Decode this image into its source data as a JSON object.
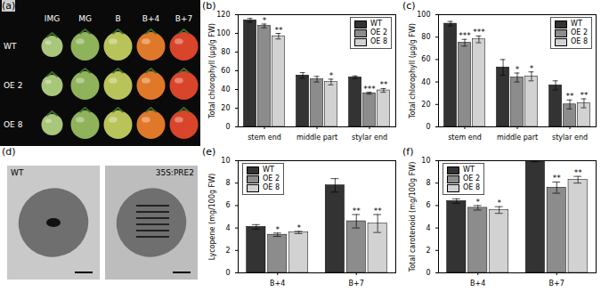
{
  "chart_data": [
    {
      "type": "bar",
      "title": "(b)",
      "ylabel": "Total chlorophyll (μg/g FW)",
      "categories": [
        "stem end",
        "middle part",
        "stylar end"
      ],
      "ylim": [
        0,
        120
      ],
      "yticks": [
        0,
        20,
        40,
        60,
        80,
        100,
        120
      ],
      "legend": "top right",
      "series": [
        {
          "name": "WT",
          "color": "#333333",
          "values": [
            114,
            55,
            53
          ],
          "errors": [
            2,
            3,
            1.5
          ],
          "significance": [
            null,
            null,
            null
          ]
        },
        {
          "name": "OE 2",
          "color": "#8c8c8c",
          "values": [
            108,
            51,
            36
          ],
          "errors": [
            2,
            3,
            1
          ],
          "significance": [
            "*",
            null,
            "***"
          ]
        },
        {
          "name": "OE 8",
          "color": "#d2d2d2",
          "values": [
            97,
            48,
            39
          ],
          "errors": [
            3,
            3,
            2
          ],
          "significance": [
            "**",
            "*",
            "**"
          ]
        }
      ]
    },
    {
      "type": "bar",
      "title": "(c)",
      "ylabel": "Total chlorophyll (μg/g FW)",
      "categories": [
        "stem end",
        "middle part",
        "stylar end"
      ],
      "ylim": [
        0,
        100
      ],
      "yticks": [
        0,
        20,
        40,
        60,
        80,
        100
      ],
      "legend": "top right",
      "series": [
        {
          "name": "WT",
          "color": "#333333",
          "values": [
            92,
            53,
            37
          ],
          "errors": [
            2,
            7,
            4
          ],
          "significance": [
            null,
            null,
            null
          ]
        },
        {
          "name": "OE 2",
          "color": "#8c8c8c",
          "values": [
            75,
            44,
            20
          ],
          "errors": [
            3,
            4,
            4
          ],
          "significance": [
            "***",
            "*",
            "**"
          ]
        },
        {
          "name": "OE 8",
          "color": "#d2d2d2",
          "values": [
            78,
            45,
            21
          ],
          "errors": [
            3,
            4,
            4
          ],
          "significance": [
            "***",
            "*",
            "**"
          ]
        }
      ]
    },
    {
      "type": "bar",
      "title": "(e)",
      "ylabel": "Lycopene (mg/100g FW)",
      "categories": [
        "B+4",
        "B+7"
      ],
      "ylim": [
        0,
        10
      ],
      "yticks": [
        0,
        2,
        4,
        6,
        8,
        10
      ],
      "legend": "top left",
      "series": [
        {
          "name": "WT",
          "color": "#333333",
          "values": [
            4.1,
            7.8
          ],
          "errors": [
            0.2,
            0.6
          ],
          "significance": [
            null,
            null
          ]
        },
        {
          "name": "OE 2",
          "color": "#8c8c8c",
          "values": [
            3.4,
            4.6
          ],
          "errors": [
            0.15,
            0.6
          ],
          "significance": [
            "*",
            "**"
          ]
        },
        {
          "name": "OE 8",
          "color": "#d2d2d2",
          "values": [
            3.6,
            4.4
          ],
          "errors": [
            0.1,
            0.8
          ],
          "significance": [
            "*",
            "**"
          ]
        }
      ]
    },
    {
      "type": "bar",
      "title": "(f)",
      "ylabel": "Total carotenoid (mg/100g FW)",
      "categories": [
        "B+4",
        "B+7"
      ],
      "ylim": [
        0,
        10
      ],
      "yticks": [
        0,
        2,
        4,
        6,
        8,
        10
      ],
      "legend": "top left",
      "series": [
        {
          "name": "WT",
          "color": "#333333",
          "values": [
            6.4,
            10.0
          ],
          "errors": [
            0.2,
            0.1
          ],
          "significance": [
            null,
            null
          ]
        },
        {
          "name": "OE 2",
          "color": "#8c8c8c",
          "values": [
            5.8,
            7.6
          ],
          "errors": [
            0.2,
            0.5
          ],
          "significance": [
            "*",
            "**"
          ]
        },
        {
          "name": "OE 8",
          "color": "#d2d2d2",
          "values": [
            5.6,
            8.3
          ],
          "errors": [
            0.3,
            0.3
          ],
          "significance": [
            "*",
            "**"
          ]
        }
      ]
    }
  ],
  "images": [
    {
      "title": "(a)",
      "columns": [
        "IMG",
        "MG",
        "B",
        "B+4",
        "B+7"
      ],
      "rows": [
        "WT",
        "OE 2",
        "OE 8"
      ]
    },
    {
      "title": "(d)",
      "labels": [
        "WT",
        "35S:PRE2"
      ]
    }
  ]
}
